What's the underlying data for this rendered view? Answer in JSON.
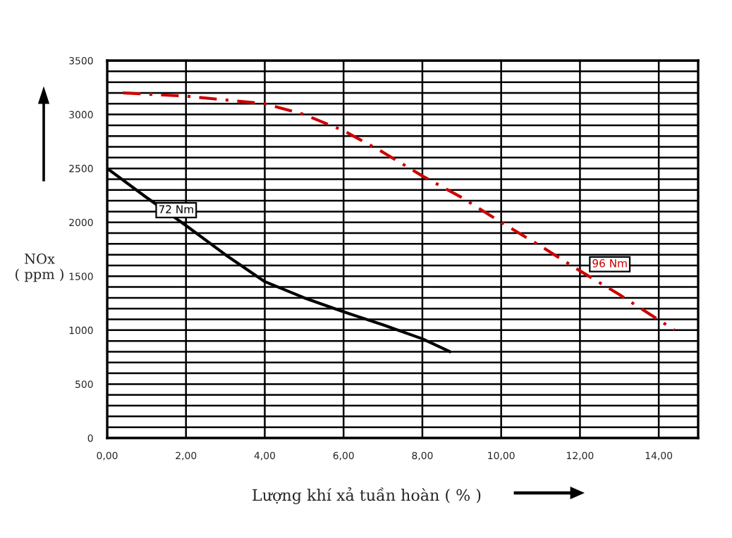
{
  "chart_data": {
    "type": "line",
    "ylabel": "NOx\n( ppm )",
    "xlabel": "Lượng khí xả tuần hoàn ( % )",
    "xlim": [
      0,
      15
    ],
    "ylim": [
      0,
      3500
    ],
    "xticks": [
      {
        "value": 0,
        "label": "0,00"
      },
      {
        "value": 2,
        "label": "2,00"
      },
      {
        "value": 4,
        "label": "4,00"
      },
      {
        "value": 6,
        "label": "6,00"
      },
      {
        "value": 8,
        "label": "8,00"
      },
      {
        "value": 10,
        "label": "10,00"
      },
      {
        "value": 12,
        "label": "12,00"
      },
      {
        "value": 14,
        "label": "14,00"
      }
    ],
    "yticks": [
      0,
      {
        "value": 100,
        "label": null
      },
      {
        "value": 200,
        "label": null
      },
      {
        "value": 300,
        "label": null
      },
      {
        "value": 400,
        "label": null
      },
      500,
      {
        "value": 600,
        "label": null
      },
      {
        "value": 700,
        "label": null
      },
      {
        "value": 800,
        "label": null
      },
      {
        "value": 900,
        "label": null
      },
      1000,
      {
        "value": 1100,
        "label": null
      },
      {
        "value": 1200,
        "label": null
      },
      {
        "value": 1300,
        "label": null
      },
      {
        "value": 1400,
        "label": null
      },
      1500,
      {
        "value": 1600,
        "label": null
      },
      {
        "value": 1700,
        "label": null
      },
      {
        "value": 1800,
        "label": null
      },
      {
        "value": 1900,
        "label": null
      },
      2000,
      {
        "value": 2100,
        "label": null
      },
      {
        "value": 2200,
        "label": null
      },
      {
        "value": 2300,
        "label": null
      },
      {
        "value": 2400,
        "label": null
      },
      2500,
      {
        "value": 2600,
        "label": null
      },
      {
        "value": 2700,
        "label": null
      },
      {
        "value": 2800,
        "label": null
      },
      {
        "value": 2900,
        "label": null
      },
      3000,
      {
        "value": 3100,
        "label": null
      },
      {
        "value": 3200,
        "label": null
      },
      {
        "value": 3300,
        "label": null
      },
      {
        "value": 3400,
        "label": null
      },
      3500
    ],
    "grid": true,
    "marker": "none",
    "series": [
      {
        "name": "72 Nm",
        "color": "#000000",
        "line_style": "solid",
        "x": [
          0,
          1,
          2,
          3,
          4,
          5,
          6,
          7,
          8,
          8.7
        ],
        "values": [
          2500,
          2230,
          1970,
          1700,
          1450,
          1300,
          1170,
          1050,
          920,
          800
        ]
      },
      {
        "name": "96 Nm",
        "color": "#cc0000",
        "line_style": "dashed",
        "x": [
          0.4,
          2,
          4,
          5,
          6,
          7,
          8,
          9,
          10,
          11,
          12,
          13,
          14.4
        ],
        "values": [
          3200,
          3170,
          3100,
          3000,
          2850,
          2650,
          2430,
          2230,
          2000,
          1780,
          1550,
          1330,
          1000
        ]
      }
    ]
  }
}
